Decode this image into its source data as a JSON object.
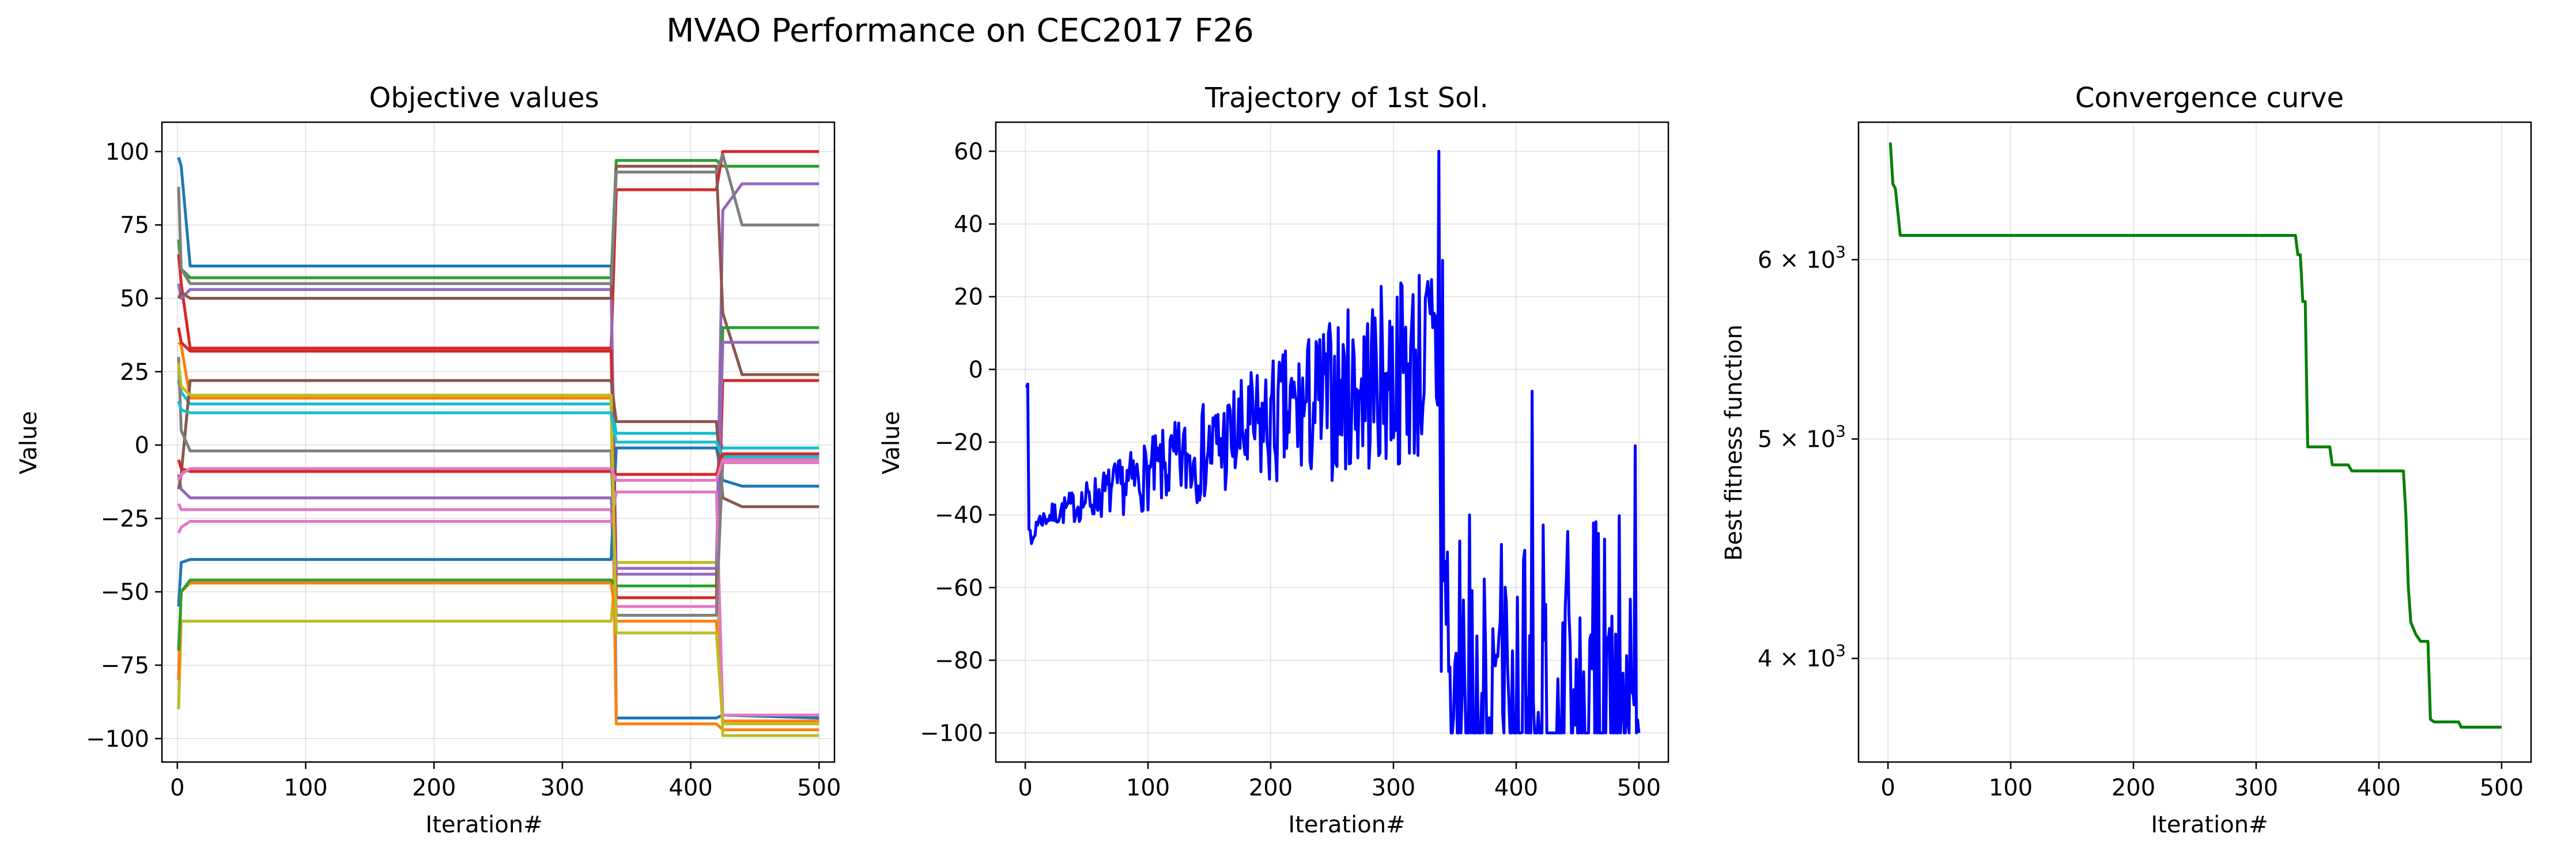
{
  "figure": {
    "suptitle": "MVAO Performance on CEC2017 F26"
  },
  "chart_data": [
    {
      "type": "line",
      "title": "Objective values",
      "xlabel": "Iteration#",
      "ylabel": "Value",
      "xlim": [
        -12,
        512
      ],
      "ylim": [
        -108,
        110
      ],
      "xticks": [
        0,
        100,
        200,
        300,
        400,
        500
      ],
      "xtick_labels": [
        "0",
        "100",
        "200",
        "300",
        "400",
        "500"
      ],
      "yticks": [
        -100,
        -75,
        -50,
        -25,
        0,
        25,
        50,
        75,
        100
      ],
      "ytick_labels": [
        "−100",
        "−75",
        "−50",
        "−25",
        "0",
        "25",
        "50",
        "75",
        "100"
      ],
      "grid": true,
      "legend": "none",
      "series": [
        {
          "color": "#1f77b4",
          "points": [
            [
              1,
              98
            ],
            [
              3,
              95
            ],
            [
              10,
              61
            ],
            [
              338,
              61
            ],
            [
              342,
              -93
            ],
            [
              420,
              -93
            ],
            [
              425,
              -92
            ],
            [
              500,
              -93
            ]
          ]
        },
        {
          "color": "#ff7f0e",
          "points": [
            [
              1,
              35
            ],
            [
              3,
              34
            ],
            [
              10,
              16
            ],
            [
              338,
              16
            ],
            [
              342,
              -95
            ],
            [
              420,
              -95
            ],
            [
              425,
              -97
            ],
            [
              500,
              -97
            ]
          ]
        },
        {
          "color": "#2ca02c",
          "points": [
            [
              1,
              70
            ],
            [
              3,
              60
            ],
            [
              10,
              57
            ],
            [
              338,
              57
            ],
            [
              342,
              97
            ],
            [
              420,
              97
            ],
            [
              425,
              95
            ],
            [
              500,
              95
            ]
          ]
        },
        {
          "color": "#d62728",
          "points": [
            [
              1,
              65
            ],
            [
              3,
              55
            ],
            [
              10,
              33
            ],
            [
              338,
              33
            ],
            [
              342,
              87
            ],
            [
              420,
              87
            ],
            [
              425,
              100
            ],
            [
              500,
              100
            ]
          ]
        },
        {
          "color": "#9467bd",
          "points": [
            [
              1,
              55
            ],
            [
              3,
              50
            ],
            [
              10,
              53
            ],
            [
              338,
              53
            ],
            [
              342,
              -44
            ],
            [
              420,
              -44
            ],
            [
              425,
              80
            ],
            [
              440,
              89
            ],
            [
              500,
              89
            ]
          ]
        },
        {
          "color": "#8c564b",
          "points": [
            [
              1,
              50
            ],
            [
              3,
              52
            ],
            [
              10,
              50
            ],
            [
              338,
              50
            ],
            [
              342,
              95
            ],
            [
              420,
              95
            ],
            [
              425,
              45
            ],
            [
              440,
              24
            ],
            [
              500,
              24
            ]
          ]
        },
        {
          "color": "#e377c2",
          "points": [
            [
              1,
              -20
            ],
            [
              3,
              -22
            ],
            [
              10,
              -22
            ],
            [
              338,
              -22
            ],
            [
              342,
              -55
            ],
            [
              420,
              -55
            ],
            [
              425,
              -6
            ],
            [
              500,
              -6
            ]
          ]
        },
        {
          "color": "#7f7f7f",
          "points": [
            [
              1,
              88
            ],
            [
              3,
              60
            ],
            [
              10,
              55
            ],
            [
              338,
              55
            ],
            [
              342,
              93
            ],
            [
              420,
              93
            ],
            [
              425,
              99
            ],
            [
              440,
              75
            ],
            [
              500,
              75
            ]
          ]
        },
        {
          "color": "#bcbd22",
          "points": [
            [
              1,
              -90
            ],
            [
              3,
              -60
            ],
            [
              10,
              -60
            ],
            [
              338,
              -60
            ],
            [
              342,
              -40
            ],
            [
              420,
              -40
            ],
            [
              425,
              -99
            ],
            [
              500,
              -99
            ]
          ]
        },
        {
          "color": "#17becf",
          "points": [
            [
              1,
              22
            ],
            [
              3,
              18
            ],
            [
              10,
              14
            ],
            [
              338,
              14
            ],
            [
              342,
              4
            ],
            [
              420,
              4
            ],
            [
              425,
              -1
            ],
            [
              500,
              -1
            ]
          ]
        },
        {
          "color": "#1f77b4",
          "points": [
            [
              1,
              -55
            ],
            [
              3,
              -40
            ],
            [
              10,
              -39
            ],
            [
              338,
              -39
            ],
            [
              342,
              -1
            ],
            [
              420,
              -1
            ],
            [
              425,
              -12
            ],
            [
              440,
              -14
            ],
            [
              500,
              -14
            ]
          ]
        },
        {
          "color": "#ff7f0e",
          "points": [
            [
              1,
              -80
            ],
            [
              3,
              -50
            ],
            [
              10,
              -47
            ],
            [
              338,
              -47
            ],
            [
              342,
              -60
            ],
            [
              420,
              -60
            ],
            [
              425,
              -94
            ],
            [
              500,
              -94
            ]
          ]
        },
        {
          "color": "#2ca02c",
          "points": [
            [
              1,
              -70
            ],
            [
              3,
              -50
            ],
            [
              10,
              -46
            ],
            [
              338,
              -46
            ],
            [
              342,
              -48
            ],
            [
              420,
              -48
            ],
            [
              425,
              40
            ],
            [
              500,
              40
            ]
          ]
        },
        {
          "color": "#d62728",
          "points": [
            [
              1,
              40
            ],
            [
              3,
              35
            ],
            [
              10,
              32
            ],
            [
              338,
              32
            ],
            [
              342,
              -52
            ],
            [
              420,
              -52
            ],
            [
              425,
              22
            ],
            [
              500,
              22
            ]
          ]
        },
        {
          "color": "#9467bd",
          "points": [
            [
              1,
              -10
            ],
            [
              3,
              -15
            ],
            [
              10,
              -18
            ],
            [
              338,
              -18
            ],
            [
              342,
              -42
            ],
            [
              420,
              -42
            ],
            [
              425,
              35
            ],
            [
              500,
              35
            ]
          ]
        },
        {
          "color": "#8c564b",
          "points": [
            [
              1,
              -15
            ],
            [
              3,
              -10
            ],
            [
              10,
              22
            ],
            [
              338,
              22
            ],
            [
              342,
              8
            ],
            [
              420,
              8
            ],
            [
              425,
              -18
            ],
            [
              440,
              -21
            ],
            [
              500,
              -21
            ]
          ]
        },
        {
          "color": "#e377c2",
          "points": [
            [
              1,
              -30
            ],
            [
              3,
              -28
            ],
            [
              10,
              -26
            ],
            [
              338,
              -26
            ],
            [
              342,
              -16
            ],
            [
              420,
              -16
            ],
            [
              425,
              -92
            ],
            [
              500,
              -92
            ]
          ]
        },
        {
          "color": "#7f7f7f",
          "points": [
            [
              1,
              30
            ],
            [
              3,
              5
            ],
            [
              10,
              -2
            ],
            [
              338,
              -2
            ],
            [
              342,
              -58
            ],
            [
              420,
              -58
            ],
            [
              425,
              -3
            ],
            [
              500,
              -3
            ]
          ]
        },
        {
          "color": "#bcbd22",
          "points": [
            [
              1,
              28
            ],
            [
              3,
              20
            ],
            [
              10,
              17
            ],
            [
              338,
              17
            ],
            [
              342,
              -64
            ],
            [
              420,
              -64
            ],
            [
              425,
              -95
            ],
            [
              500,
              -95
            ]
          ]
        },
        {
          "color": "#17becf",
          "points": [
            [
              1,
              15
            ],
            [
              3,
              12
            ],
            [
              10,
              11
            ],
            [
              338,
              11
            ],
            [
              342,
              1
            ],
            [
              420,
              1
            ],
            [
              425,
              -4
            ],
            [
              500,
              -4
            ]
          ]
        },
        {
          "color": "#d62728",
          "points": [
            [
              1,
              -5
            ],
            [
              3,
              -8
            ],
            [
              10,
              -9
            ],
            [
              338,
              -9
            ],
            [
              342,
              -10
            ],
            [
              420,
              -10
            ],
            [
              425,
              -3
            ],
            [
              500,
              -3
            ]
          ]
        },
        {
          "color": "#e377c2",
          "points": [
            [
              1,
              -12
            ],
            [
              3,
              -10
            ],
            [
              10,
              -8
            ],
            [
              338,
              -8
            ],
            [
              342,
              -12
            ],
            [
              420,
              -12
            ],
            [
              425,
              -5
            ],
            [
              500,
              -5
            ]
          ]
        }
      ]
    },
    {
      "type": "line",
      "title": "Trajectory of 1st Sol.",
      "xlabel": "Iteration#",
      "ylabel": "Value",
      "xlim": [
        -24,
        524
      ],
      "ylim": [
        -108,
        68
      ],
      "xticks": [
        0,
        100,
        200,
        300,
        400,
        500
      ],
      "xtick_labels": [
        "0",
        "100",
        "200",
        "300",
        "400",
        "500"
      ],
      "yticks": [
        -100,
        -80,
        -60,
        -40,
        -20,
        0,
        20,
        40,
        60
      ],
      "ytick_labels": [
        "−100",
        "−80",
        "−60",
        "−40",
        "−20",
        "0",
        "20",
        "40",
        "60"
      ],
      "grid": true,
      "legend": "none",
      "series": [
        {
          "color": "#0000ff",
          "generator": "noisy_trajectory",
          "seed": 7
        }
      ]
    },
    {
      "type": "line",
      "title": "Convergence curve",
      "xlabel": "Iteration#",
      "ylabel": "Best fitness function",
      "yscale": "log",
      "xlim": [
        -24,
        524
      ],
      "ylim": [
        3600,
        6900
      ],
      "xticks": [
        0,
        100,
        200,
        300,
        400,
        500
      ],
      "xtick_labels": [
        "0",
        "100",
        "200",
        "300",
        "400",
        "500"
      ],
      "yticks": [
        4000,
        5000,
        6000
      ],
      "ytick_labels": [
        "4",
        "5",
        "6"
      ],
      "ytick_label_base": "× 10",
      "ytick_label_exp": "3",
      "grid": true,
      "legend": "none",
      "series": [
        {
          "color": "#008000",
          "points": [
            [
              1,
              6750
            ],
            [
              2,
              6750
            ],
            [
              4,
              6480
            ],
            [
              6,
              6450
            ],
            [
              8,
              6300
            ],
            [
              10,
              6150
            ],
            [
              332,
              6150
            ],
            [
              334,
              6030
            ],
            [
              336,
              6030
            ],
            [
              338,
              5750
            ],
            [
              340,
              5750
            ],
            [
              342,
              4960
            ],
            [
              360,
              4960
            ],
            [
              362,
              4870
            ],
            [
              375,
              4870
            ],
            [
              378,
              4840
            ],
            [
              420,
              4840
            ],
            [
              422,
              4630
            ],
            [
              424,
              4300
            ],
            [
              426,
              4150
            ],
            [
              430,
              4100
            ],
            [
              434,
              4070
            ],
            [
              440,
              4070
            ],
            [
              442,
              3760
            ],
            [
              445,
              3750
            ],
            [
              465,
              3750
            ],
            [
              467,
              3730
            ],
            [
              500,
              3730
            ]
          ]
        }
      ]
    }
  ]
}
